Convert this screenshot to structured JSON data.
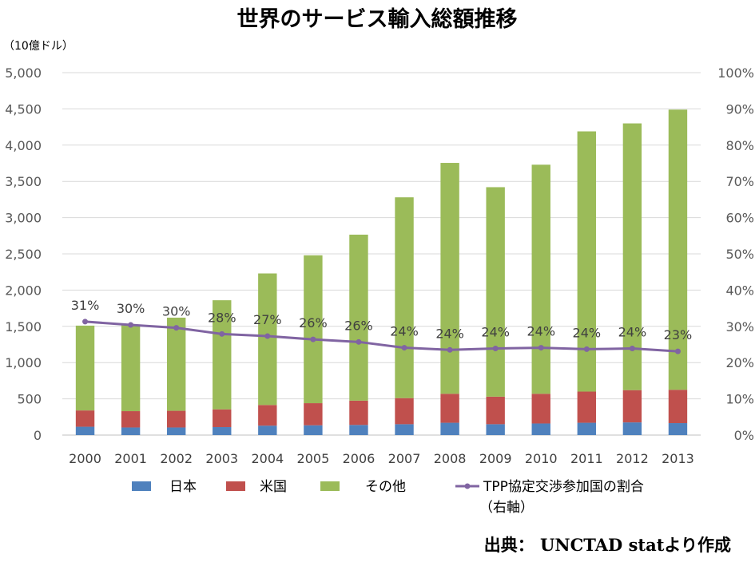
{
  "chart_data": {
    "type": "bar",
    "stacked": true,
    "title": "世界のサービス輸入総額推移",
    "ylabel": "（10億ドル）",
    "ylim": [
      0,
      5000
    ],
    "y_ticks": [
      "0",
      "500",
      "1,000",
      "1,500",
      "2,000",
      "2,500",
      "3,000",
      "3,500",
      "4,000",
      "4,500",
      "5,000"
    ],
    "y2lim": [
      0,
      100
    ],
    "y2_ticks": [
      "0%",
      "10%",
      "20%",
      "30%",
      "40%",
      "50%",
      "60%",
      "70%",
      "80%",
      "90%",
      "100%"
    ],
    "categories": [
      "2000",
      "2001",
      "2002",
      "2003",
      "2004",
      "2005",
      "2006",
      "2007",
      "2008",
      "2009",
      "2010",
      "2011",
      "2012",
      "2013"
    ],
    "series": [
      {
        "name": "日本",
        "color": "#4f81bd",
        "values": [
          115,
          105,
          105,
          110,
          130,
          135,
          140,
          150,
          170,
          150,
          160,
          170,
          175,
          165
        ]
      },
      {
        "name": "米国",
        "color": "#c0504d",
        "values": [
          225,
          225,
          230,
          245,
          285,
          305,
          335,
          360,
          400,
          380,
          410,
          430,
          445,
          460
        ]
      },
      {
        "name": "その他",
        "color": "#9bbb59",
        "values": [
          1170,
          1190,
          1285,
          1505,
          1815,
          2040,
          2290,
          2770,
          3185,
          2890,
          3160,
          3590,
          3680,
          3865
        ]
      }
    ],
    "line_series": {
      "name": "TPP協定交渉参加国の割合",
      "name_line2": "（右軸）",
      "color": "#8064a2",
      "axis": "right",
      "values": [
        31.3,
        30.4,
        29.6,
        27.9,
        27.3,
        26.4,
        25.7,
        24.1,
        23.5,
        23.9,
        24.1,
        23.7,
        23.9,
        23.1
      ],
      "labels": [
        "31%",
        "30%",
        "30%",
        "28%",
        "27%",
        "26%",
        "26%",
        "24%",
        "24%",
        "24%",
        "24%",
        "24%",
        "24%",
        "23%"
      ]
    },
    "grid": true,
    "legend_position": "bottom",
    "source": "出典：  UNCTAD  statより作成"
  }
}
